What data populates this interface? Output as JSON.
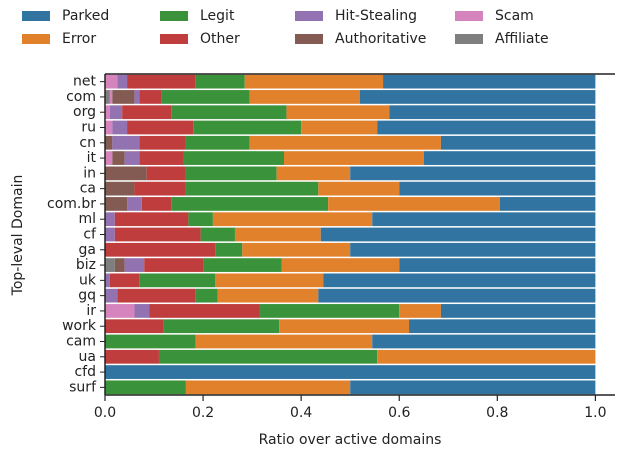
{
  "chart_data": {
    "type": "stacked_barh",
    "xlabel": "Ratio over active domains",
    "ylabel": "Top-leval Domain",
    "categories": [
      "net",
      "com",
      "org",
      "ru",
      "cn",
      "it",
      "in",
      "ca",
      "com.br",
      "ml",
      "cf",
      "ga",
      "biz",
      "uk",
      "gq",
      "ir",
      "work",
      "cam",
      "ua",
      "cfd",
      "surf"
    ],
    "series": [
      {
        "name": "Parked",
        "color": "#3274a1",
        "values": [
          0.433,
          0.48,
          0.42,
          0.445,
          0.315,
          0.35,
          0.5,
          0.4,
          0.195,
          0.455,
          0.56,
          0.5,
          0.4,
          0.555,
          0.565,
          0.315,
          0.38,
          0.455,
          0,
          1,
          0.5
        ]
      },
      {
        "name": "Error",
        "color": "#e1812c",
        "values": [
          0.282,
          0.225,
          0.21,
          0.155,
          0.39,
          0.285,
          0.15,
          0.165,
          0.35,
          0.325,
          0.175,
          0.22,
          0.24,
          0.22,
          0.205,
          0.085,
          0.265,
          0.36,
          0.445,
          0,
          0.335
        ]
      },
      {
        "name": "Legit",
        "color": "#3a923a",
        "values": [
          0.1,
          0.18,
          0.235,
          0.22,
          0.13,
          0.205,
          0.185,
          0.27,
          0.32,
          0.05,
          0.07,
          0.055,
          0.16,
          0.155,
          0.045,
          0.285,
          0.235,
          0.185,
          0.445,
          0,
          0.165
        ]
      },
      {
        "name": "Other",
        "color": "#c03d3e",
        "values": [
          0.14,
          0.045,
          0.1,
          0.135,
          0.095,
          0.09,
          0.08,
          0.105,
          0.06,
          0.15,
          0.175,
          0.225,
          0.12,
          0.06,
          0.16,
          0.225,
          0.12,
          0,
          0.11,
          0,
          0
        ]
      },
      {
        "name": "Hit-Stealing",
        "color": "#9372b2",
        "values": [
          0.02,
          0.01,
          0.025,
          0.03,
          0.055,
          0.03,
          0,
          0,
          0.03,
          0.02,
          0.02,
          0,
          0.04,
          0.01,
          0.025,
          0.03,
          0,
          0,
          0,
          0,
          0
        ]
      },
      {
        "name": "Authoritative",
        "color": "#845b53",
        "values": [
          0,
          0.045,
          0,
          0,
          0.015,
          0.025,
          0.085,
          0.06,
          0.045,
          0,
          0,
          0,
          0.02,
          0,
          0,
          0,
          0,
          0,
          0,
          0,
          0
        ]
      },
      {
        "name": "Scam",
        "color": "#d684bd",
        "values": [
          0.025,
          0.005,
          0.01,
          0.015,
          0,
          0.015,
          0,
          0,
          0,
          0,
          0,
          0,
          0,
          0,
          0,
          0.06,
          0,
          0,
          0,
          0,
          0
        ]
      },
      {
        "name": "Affiliate",
        "color": "#7f7f7f",
        "values": [
          0,
          0.01,
          0,
          0,
          0,
          0,
          0,
          0,
          0,
          0,
          0,
          0,
          0.02,
          0,
          0,
          0,
          0,
          0,
          0,
          0,
          0
        ]
      }
    ],
    "xlim": [
      0,
      1.04
    ],
    "xticks": [
      {
        "value": 0,
        "label": "0.0"
      },
      0.2,
      0.4,
      0.6,
      0.8,
      {
        "value": 1,
        "label": "1.0"
      }
    ]
  }
}
